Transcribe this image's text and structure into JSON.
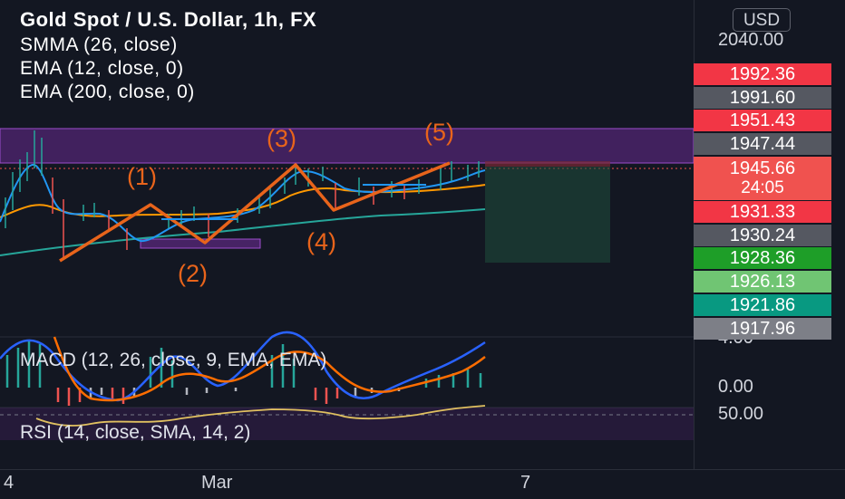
{
  "legend": {
    "symbol": "Gold Spot / U.S. Dollar, 1h, FX",
    "smma": "SMMA (26, close)",
    "ema12": "EMA (12, close, 0)",
    "ema200": "EMA (200, close, 0)"
  },
  "wave_labels": [
    "(1)",
    "(2)",
    "(3)",
    "(4)",
    "(5)"
  ],
  "indicators": {
    "macd": "MACD (12, 26, close, 9, EMA, EMA)",
    "rsi": "RSI (14, close, SMA, 14, 2)"
  },
  "price_scale": {
    "currency": "USD",
    "top_label": "2040.00",
    "macd_label_top": "4.00",
    "macd_label_zero": "0.00",
    "rsi_label": "50.00"
  },
  "price_tags": [
    {
      "value": "1992.36",
      "color": "#f23645"
    },
    {
      "value": "1991.60",
      "color": "#555861"
    },
    {
      "value": "1951.43",
      "color": "#f23645"
    },
    {
      "value": "1947.44",
      "color": "#555861"
    },
    {
      "value": "1945.66",
      "countdown": "24:05",
      "color": "#f0524f"
    },
    {
      "value": "1931.33",
      "color": "#f23645"
    },
    {
      "value": "1930.24",
      "color": "#555861"
    },
    {
      "value": "1928.36",
      "color": "#1e9e28"
    },
    {
      "value": "1926.13",
      "color": "#70c573"
    },
    {
      "value": "1921.86",
      "color": "#089981"
    },
    {
      "value": "1917.96",
      "color": "#7d7f87"
    }
  ],
  "time_axis": [
    "4",
    "Mar",
    "7"
  ],
  "colors": {
    "background": "#131722",
    "wave_line": "#e8641b",
    "zone_fill": "#7b2fa8",
    "ema12": "#2196f3",
    "smma": "#ff9800",
    "ema200": "#26a69a",
    "macd_line": "#2962ff",
    "signal_line": "#ff6d00",
    "rsi_line": "#e0c060"
  }
}
